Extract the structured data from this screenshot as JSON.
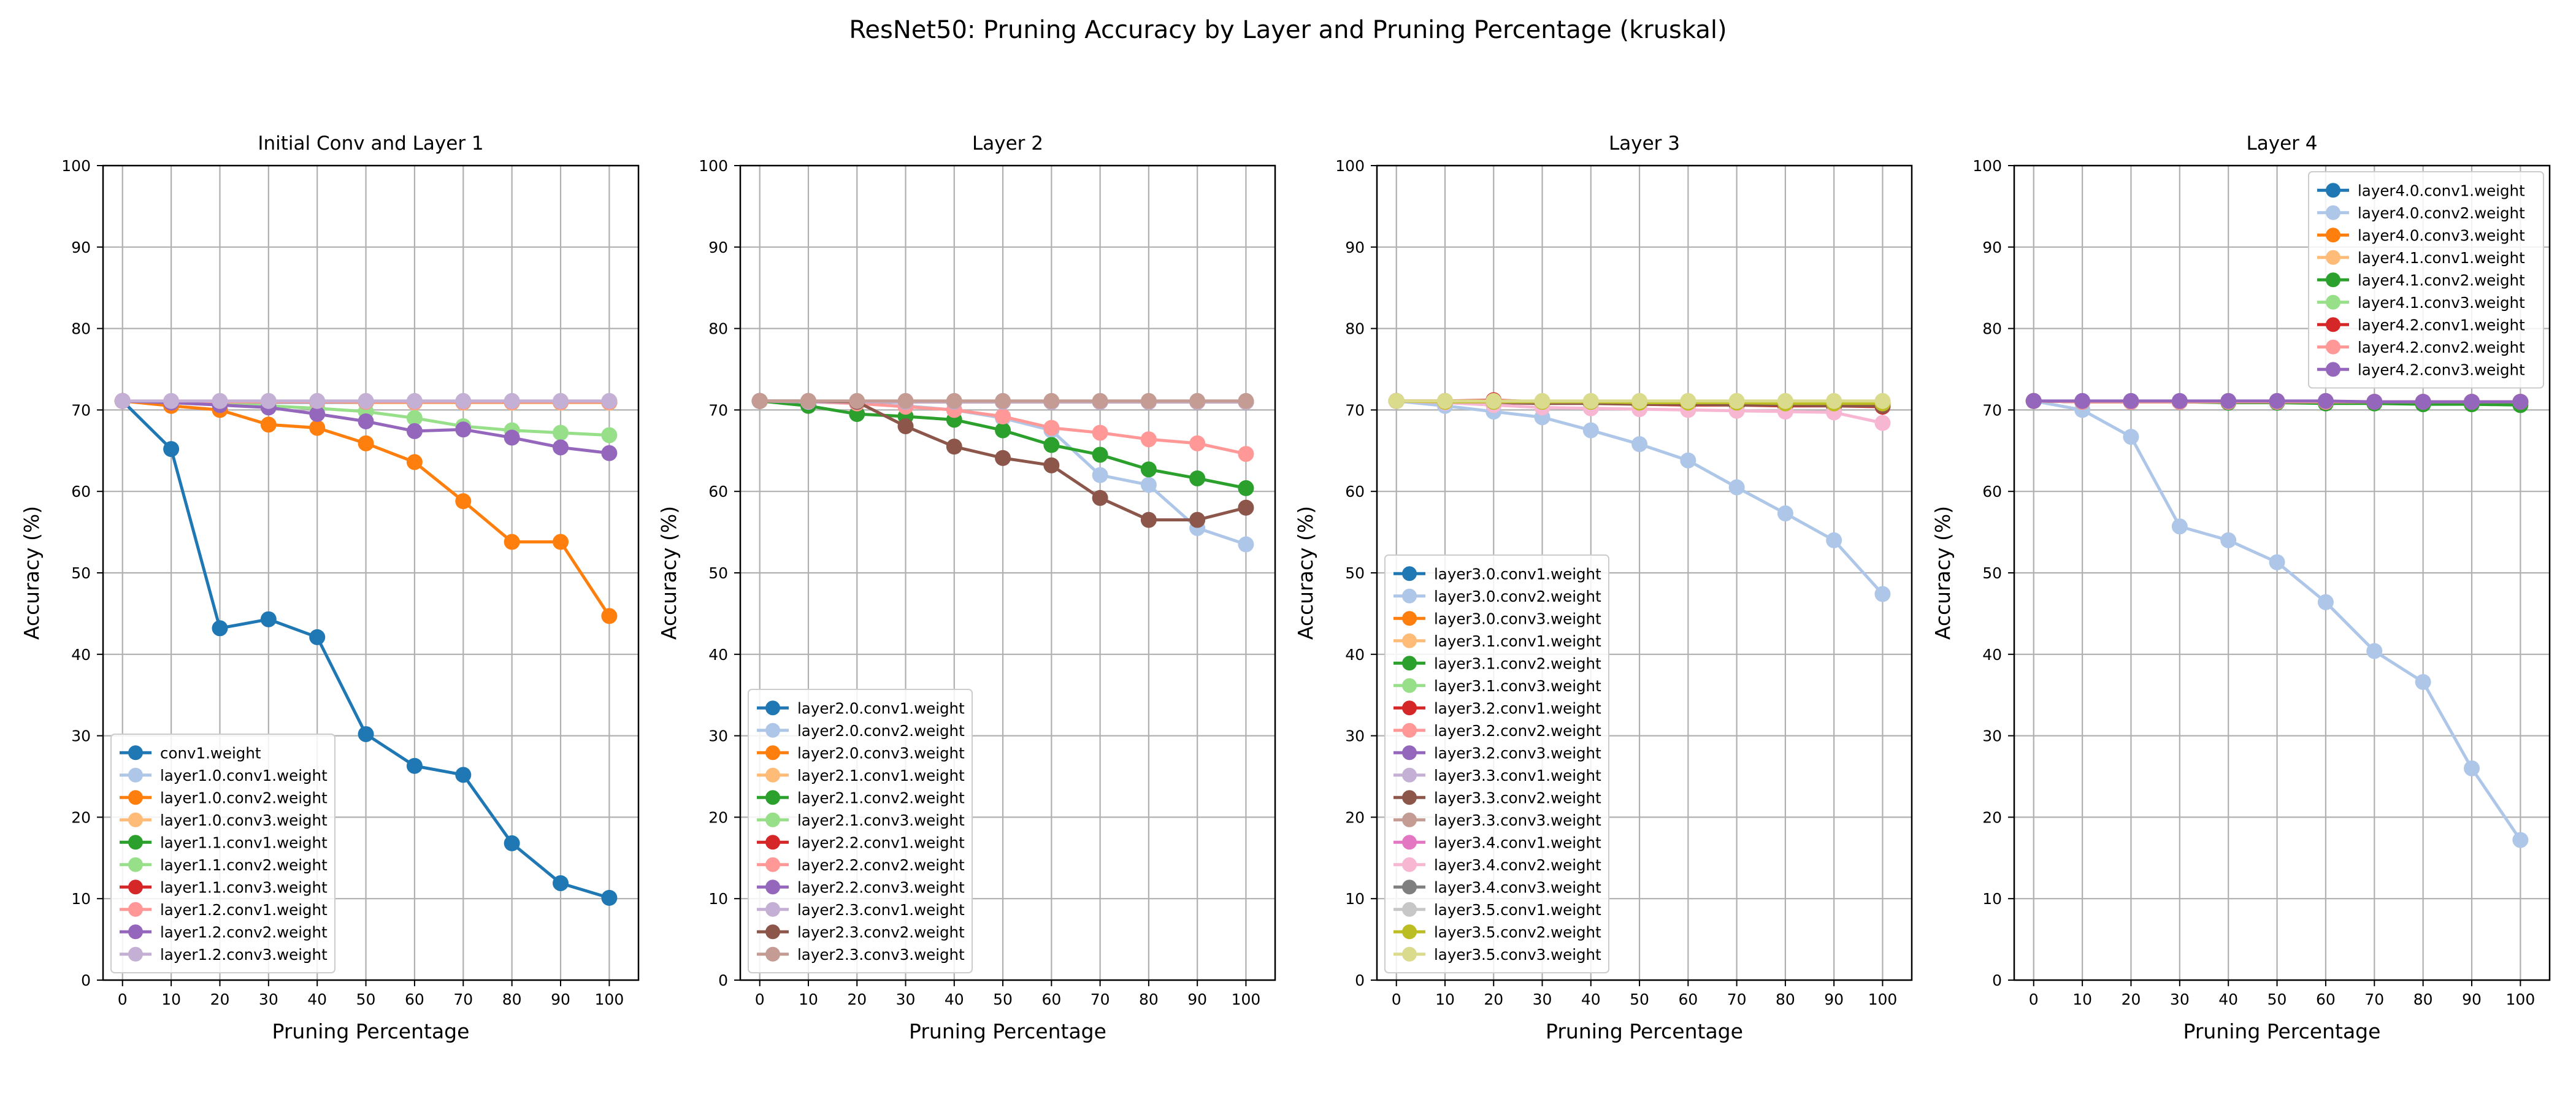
{
  "figure": {
    "title": "ResNet50: Pruning Accuracy by Layer and Pruning Percentage (kruskal)"
  },
  "palette": [
    "#1f77b4",
    "#aec7e8",
    "#ff7f0e",
    "#ffbb78",
    "#2ca02c",
    "#98df8a",
    "#d62728",
    "#ff9896",
    "#9467bd",
    "#c5b0d5",
    "#8c564b",
    "#c49c94",
    "#e377c2",
    "#f7b6d2",
    "#7f7f7f",
    "#c7c7c7",
    "#bcbd22",
    "#dbdb8d"
  ],
  "chart_data": [
    {
      "type": "line",
      "title": "Initial Conv and Layer 1",
      "xlabel": "Pruning Percentage",
      "ylabel": "Accuracy (%)",
      "x": [
        0,
        10,
        20,
        30,
        40,
        50,
        60,
        70,
        80,
        90,
        100
      ],
      "xlim": [
        -4,
        106
      ],
      "ylim": [
        0,
        100
      ],
      "xticks": [
        0,
        10,
        20,
        30,
        40,
        50,
        60,
        70,
        80,
        90,
        100
      ],
      "yticks": [
        0,
        10,
        20,
        30,
        40,
        50,
        60,
        70,
        80,
        90,
        100
      ],
      "grid": true,
      "legend_loc": "lower left",
      "series": [
        {
          "name": "conv1.weight",
          "color": "#1f77b4",
          "values": [
            71.1,
            65.2,
            43.2,
            44.3,
            42.1,
            30.2,
            26.3,
            25.2,
            16.8,
            11.9,
            10.1
          ]
        },
        {
          "name": "layer1.0.conv1.weight",
          "color": "#aec7e8",
          "values": [
            71.1,
            71.0,
            71.0,
            70.9,
            70.9,
            70.9,
            70.9,
            70.9,
            70.9,
            70.9,
            70.9
          ]
        },
        {
          "name": "layer1.0.conv2.weight",
          "color": "#ff7f0e",
          "values": [
            71.1,
            70.5,
            70.0,
            68.2,
            67.8,
            65.9,
            63.6,
            58.8,
            53.8,
            53.8,
            44.7
          ]
        },
        {
          "name": "layer1.0.conv3.weight",
          "color": "#ffbb78",
          "values": [
            71.1,
            71.0,
            71.0,
            71.0,
            71.0,
            70.9,
            70.9,
            70.9,
            70.9,
            70.9,
            70.9
          ]
        },
        {
          "name": "layer1.1.conv1.weight",
          "color": "#2ca02c",
          "values": [
            71.1,
            71.0,
            71.0,
            71.0,
            71.0,
            71.0,
            71.0,
            71.0,
            71.0,
            71.0,
            71.0
          ]
        },
        {
          "name": "layer1.1.conv2.weight",
          "color": "#98df8a",
          "values": [
            71.1,
            71.0,
            70.8,
            70.5,
            70.2,
            69.8,
            69.0,
            68.0,
            67.5,
            67.2,
            66.9
          ]
        },
        {
          "name": "layer1.1.conv3.weight",
          "color": "#d62728",
          "values": [
            71.1,
            71.0,
            71.0,
            71.0,
            71.0,
            71.0,
            71.0,
            71.0,
            71.0,
            71.0,
            71.0
          ]
        },
        {
          "name": "layer1.2.conv1.weight",
          "color": "#ff9896",
          "values": [
            71.1,
            71.0,
            71.0,
            71.0,
            71.0,
            71.0,
            71.0,
            71.0,
            71.0,
            71.0,
            71.0
          ]
        },
        {
          "name": "layer1.2.conv2.weight",
          "color": "#9467bd",
          "values": [
            71.1,
            70.9,
            70.6,
            70.3,
            69.5,
            68.6,
            67.4,
            67.6,
            66.6,
            65.4,
            64.7
          ]
        },
        {
          "name": "layer1.2.conv3.weight",
          "color": "#c5b0d5",
          "values": [
            71.1,
            71.1,
            71.1,
            71.1,
            71.1,
            71.1,
            71.1,
            71.1,
            71.1,
            71.1,
            71.1
          ]
        }
      ]
    },
    {
      "type": "line",
      "title": "Layer 2",
      "xlabel": "Pruning Percentage",
      "ylabel": "Accuracy (%)",
      "x": [
        0,
        10,
        20,
        30,
        40,
        50,
        60,
        70,
        80,
        90,
        100
      ],
      "xlim": [
        -4,
        106
      ],
      "ylim": [
        0,
        100
      ],
      "xticks": [
        0,
        10,
        20,
        30,
        40,
        50,
        60,
        70,
        80,
        90,
        100
      ],
      "yticks": [
        0,
        10,
        20,
        30,
        40,
        50,
        60,
        70,
        80,
        90,
        100
      ],
      "grid": true,
      "legend_loc": "lower left",
      "series": [
        {
          "name": "layer2.0.conv1.weight",
          "color": "#1f77b4",
          "values": [
            71.1,
            71.0,
            71.0,
            71.0,
            71.0,
            71.0,
            71.0,
            71.0,
            71.0,
            71.0,
            71.0
          ]
        },
        {
          "name": "layer2.0.conv2.weight",
          "color": "#aec7e8",
          "values": [
            71.1,
            71.0,
            70.8,
            70.5,
            70.0,
            69.0,
            67.5,
            62.0,
            60.8,
            55.5,
            53.5
          ]
        },
        {
          "name": "layer2.0.conv3.weight",
          "color": "#ff7f0e",
          "values": [
            71.1,
            71.0,
            71.0,
            71.0,
            71.0,
            71.0,
            71.0,
            71.0,
            71.0,
            71.0,
            71.0
          ]
        },
        {
          "name": "layer2.1.conv1.weight",
          "color": "#ffbb78",
          "values": [
            71.1,
            71.0,
            71.0,
            71.0,
            71.0,
            71.0,
            71.0,
            71.0,
            71.0,
            71.0,
            71.0
          ]
        },
        {
          "name": "layer2.1.conv2.weight",
          "color": "#2ca02c",
          "values": [
            71.1,
            70.5,
            69.5,
            69.2,
            68.8,
            67.5,
            65.7,
            64.5,
            62.7,
            61.6,
            60.4
          ]
        },
        {
          "name": "layer2.1.conv3.weight",
          "color": "#98df8a",
          "values": [
            71.1,
            71.0,
            71.0,
            71.0,
            71.0,
            71.0,
            71.0,
            71.0,
            71.0,
            71.0,
            71.0
          ]
        },
        {
          "name": "layer2.2.conv1.weight",
          "color": "#d62728",
          "values": [
            71.1,
            71.0,
            71.0,
            71.0,
            71.0,
            71.0,
            71.0,
            71.0,
            71.0,
            71.0,
            71.0
          ]
        },
        {
          "name": "layer2.2.conv2.weight",
          "color": "#ff9896",
          "values": [
            71.1,
            71.0,
            70.8,
            70.4,
            70.0,
            69.2,
            67.8,
            67.2,
            66.4,
            65.9,
            64.6
          ]
        },
        {
          "name": "layer2.2.conv3.weight",
          "color": "#9467bd",
          "values": [
            71.1,
            71.0,
            71.0,
            71.0,
            71.0,
            71.0,
            71.0,
            71.0,
            71.0,
            71.0,
            71.0
          ]
        },
        {
          "name": "layer2.3.conv1.weight",
          "color": "#c5b0d5",
          "values": [
            71.1,
            71.0,
            71.0,
            71.0,
            71.0,
            71.0,
            71.0,
            71.0,
            71.0,
            71.0,
            71.0
          ]
        },
        {
          "name": "layer2.3.conv2.weight",
          "color": "#8c564b",
          "values": [
            71.1,
            71.1,
            71.0,
            68.0,
            65.5,
            64.1,
            63.2,
            59.2,
            56.5,
            56.5,
            58.0
          ]
        },
        {
          "name": "layer2.3.conv3.weight",
          "color": "#c49c94",
          "values": [
            71.1,
            71.1,
            71.1,
            71.1,
            71.1,
            71.1,
            71.1,
            71.1,
            71.1,
            71.1,
            71.1
          ]
        }
      ]
    },
    {
      "type": "line",
      "title": "Layer 3",
      "xlabel": "Pruning Percentage",
      "ylabel": "Accuracy (%)",
      "x": [
        0,
        10,
        20,
        30,
        40,
        50,
        60,
        70,
        80,
        90,
        100
      ],
      "xlim": [
        -4,
        106
      ],
      "ylim": [
        0,
        100
      ],
      "xticks": [
        0,
        10,
        20,
        30,
        40,
        50,
        60,
        70,
        80,
        90,
        100
      ],
      "yticks": [
        0,
        10,
        20,
        30,
        40,
        50,
        60,
        70,
        80,
        90,
        100
      ],
      "grid": true,
      "legend_loc": "lower left",
      "series": [
        {
          "name": "layer3.0.conv1.weight",
          "color": "#1f77b4",
          "values": [
            71.1,
            71.0,
            71.0,
            71.0,
            71.0,
            71.0,
            71.0,
            71.0,
            71.0,
            71.0,
            71.0
          ]
        },
        {
          "name": "layer3.0.conv2.weight",
          "color": "#aec7e8",
          "values": [
            71.1,
            70.5,
            69.8,
            69.1,
            67.5,
            65.8,
            63.8,
            60.5,
            57.3,
            54.0,
            47.4
          ]
        },
        {
          "name": "layer3.0.conv3.weight",
          "color": "#ff7f0e",
          "values": [
            71.1,
            71.0,
            71.0,
            71.0,
            71.0,
            71.0,
            71.0,
            71.0,
            71.0,
            71.0,
            71.0
          ]
        },
        {
          "name": "layer3.1.conv1.weight",
          "color": "#ffbb78",
          "values": [
            71.1,
            71.0,
            71.0,
            71.0,
            71.0,
            71.0,
            71.0,
            71.0,
            71.0,
            71.0,
            71.0
          ]
        },
        {
          "name": "layer3.1.conv2.weight",
          "color": "#2ca02c",
          "values": [
            71.1,
            71.0,
            71.0,
            71.0,
            70.9,
            70.9,
            70.8,
            70.8,
            70.7,
            70.7,
            70.6
          ]
        },
        {
          "name": "layer3.1.conv3.weight",
          "color": "#98df8a",
          "values": [
            71.1,
            71.0,
            71.0,
            71.0,
            71.0,
            71.0,
            71.0,
            71.0,
            71.0,
            71.0,
            71.0
          ]
        },
        {
          "name": "layer3.2.conv1.weight",
          "color": "#d62728",
          "values": [
            71.1,
            71.1,
            71.2,
            71.0,
            70.9,
            70.7,
            70.6,
            70.6,
            70.5,
            70.5,
            70.4
          ]
        },
        {
          "name": "layer3.2.conv2.weight",
          "color": "#ff9896",
          "values": [
            71.1,
            71.0,
            71.0,
            71.0,
            71.0,
            71.0,
            71.0,
            71.0,
            71.0,
            71.0,
            71.0
          ]
        },
        {
          "name": "layer3.2.conv3.weight",
          "color": "#9467bd",
          "values": [
            71.1,
            71.0,
            71.0,
            71.0,
            71.0,
            71.0,
            71.0,
            71.0,
            71.0,
            71.0,
            71.0
          ]
        },
        {
          "name": "layer3.3.conv1.weight",
          "color": "#c5b0d5",
          "values": [
            71.1,
            71.0,
            71.0,
            71.0,
            71.0,
            71.0,
            71.0,
            71.0,
            71.0,
            71.0,
            71.0
          ]
        },
        {
          "name": "layer3.3.conv2.weight",
          "color": "#8c564b",
          "values": [
            71.1,
            71.0,
            70.9,
            70.8,
            70.8,
            70.7,
            70.7,
            70.6,
            70.6,
            70.5,
            70.5
          ]
        },
        {
          "name": "layer3.3.conv3.weight",
          "color": "#c49c94",
          "values": [
            71.1,
            71.0,
            71.0,
            71.0,
            71.0,
            71.0,
            71.0,
            71.0,
            71.0,
            71.0,
            71.0
          ]
        },
        {
          "name": "layer3.4.conv1.weight",
          "color": "#e377c2",
          "values": [
            71.1,
            71.0,
            71.0,
            71.0,
            71.0,
            71.0,
            71.0,
            71.0,
            71.0,
            71.0,
            71.0
          ]
        },
        {
          "name": "layer3.4.conv2.weight",
          "color": "#f7b6d2",
          "values": [
            71.1,
            70.9,
            70.6,
            70.3,
            70.2,
            70.1,
            70.0,
            69.9,
            69.8,
            69.7,
            68.4
          ]
        },
        {
          "name": "layer3.4.conv3.weight",
          "color": "#7f7f7f",
          "values": [
            71.1,
            71.0,
            71.0,
            71.0,
            71.0,
            71.0,
            71.0,
            71.0,
            71.0,
            71.0,
            71.0
          ]
        },
        {
          "name": "layer3.5.conv1.weight",
          "color": "#c7c7c7",
          "values": [
            71.1,
            71.0,
            71.0,
            71.0,
            71.0,
            71.0,
            71.0,
            71.0,
            71.0,
            71.0,
            71.0
          ]
        },
        {
          "name": "layer3.5.conv2.weight",
          "color": "#bcbd22",
          "values": [
            71.1,
            71.0,
            71.0,
            71.0,
            71.0,
            70.9,
            70.9,
            70.9,
            70.8,
            70.8,
            70.8
          ]
        },
        {
          "name": "layer3.5.conv3.weight",
          "color": "#dbdb8d",
          "values": [
            71.1,
            71.1,
            71.1,
            71.1,
            71.1,
            71.1,
            71.1,
            71.1,
            71.1,
            71.1,
            71.1
          ]
        }
      ]
    },
    {
      "type": "line",
      "title": "Layer 4",
      "xlabel": "Pruning Percentage",
      "ylabel": "Accuracy (%)",
      "x": [
        0,
        10,
        20,
        30,
        40,
        50,
        60,
        70,
        80,
        90,
        100
      ],
      "xlim": [
        -4,
        106
      ],
      "ylim": [
        0,
        100
      ],
      "xticks": [
        0,
        10,
        20,
        30,
        40,
        50,
        60,
        70,
        80,
        90,
        100
      ],
      "yticks": [
        0,
        10,
        20,
        30,
        40,
        50,
        60,
        70,
        80,
        90,
        100
      ],
      "grid": true,
      "legend_loc": "upper right",
      "series": [
        {
          "name": "layer4.0.conv1.weight",
          "color": "#1f77b4",
          "values": [
            71.1,
            71.0,
            71.0,
            71.0,
            71.0,
            71.0,
            71.0,
            71.0,
            71.0,
            71.0,
            71.0
          ]
        },
        {
          "name": "layer4.0.conv2.weight",
          "color": "#aec7e8",
          "values": [
            71.1,
            70.0,
            66.7,
            55.7,
            54.0,
            51.3,
            46.4,
            40.4,
            36.6,
            26.0,
            17.2
          ]
        },
        {
          "name": "layer4.0.conv3.weight",
          "color": "#ff7f0e",
          "values": [
            71.1,
            71.0,
            71.0,
            71.0,
            71.0,
            71.0,
            71.0,
            71.0,
            71.0,
            71.0,
            71.0
          ]
        },
        {
          "name": "layer4.1.conv1.weight",
          "color": "#ffbb78",
          "values": [
            71.1,
            71.0,
            71.0,
            71.0,
            71.0,
            71.0,
            71.0,
            71.0,
            71.0,
            71.0,
            71.0
          ]
        },
        {
          "name": "layer4.1.conv2.weight",
          "color": "#2ca02c",
          "values": [
            71.1,
            71.0,
            71.0,
            71.0,
            70.9,
            70.9,
            70.8,
            70.8,
            70.7,
            70.7,
            70.6
          ]
        },
        {
          "name": "layer4.1.conv3.weight",
          "color": "#98df8a",
          "values": [
            71.1,
            71.0,
            71.0,
            71.0,
            71.0,
            71.0,
            71.0,
            71.0,
            71.0,
            71.0,
            71.0
          ]
        },
        {
          "name": "layer4.2.conv1.weight",
          "color": "#d62728",
          "values": [
            71.1,
            71.0,
            71.0,
            71.0,
            71.0,
            71.0,
            71.0,
            71.0,
            71.0,
            71.0,
            71.0
          ]
        },
        {
          "name": "layer4.2.conv2.weight",
          "color": "#ff9896",
          "values": [
            71.1,
            71.0,
            71.0,
            71.0,
            71.0,
            71.0,
            71.0,
            71.0,
            71.0,
            71.0,
            71.0
          ]
        },
        {
          "name": "layer4.2.conv3.weight",
          "color": "#9467bd",
          "values": [
            71.1,
            71.1,
            71.1,
            71.1,
            71.1,
            71.1,
            71.1,
            71.0,
            71.0,
            71.0,
            71.0
          ]
        }
      ]
    }
  ]
}
